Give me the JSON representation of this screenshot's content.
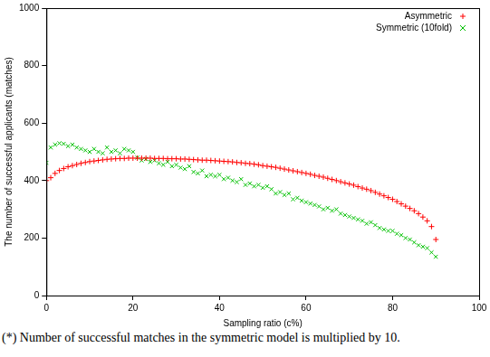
{
  "chart_data": {
    "type": "scatter",
    "x_label": "Sampling ratio (c%)",
    "y_label": "The number of successful applicants (matches)",
    "annotations": [
      "(*) Number of successful matches in the symmetric model is multiplied by 10."
    ],
    "x": [
      0,
      1,
      2,
      3,
      4,
      5,
      6,
      7,
      8,
      9,
      10,
      11,
      12,
      13,
      14,
      15,
      16,
      17,
      18,
      19,
      20,
      21,
      22,
      23,
      24,
      25,
      26,
      27,
      28,
      29,
      30,
      31,
      32,
      33,
      34,
      35,
      36,
      37,
      38,
      39,
      40,
      41,
      42,
      43,
      44,
      45,
      46,
      47,
      48,
      49,
      50,
      51,
      52,
      53,
      54,
      55,
      56,
      57,
      58,
      59,
      60,
      61,
      62,
      63,
      64,
      65,
      66,
      67,
      68,
      69,
      70,
      71,
      72,
      73,
      74,
      75,
      76,
      77,
      78,
      79,
      80,
      81,
      82,
      83,
      84,
      85,
      86,
      87,
      88,
      89,
      90
    ],
    "series": [
      {
        "name": "Asymmetric",
        "color": "#ff0000",
        "marker": "plus",
        "values": [
          400,
          410,
          425,
          435,
          442,
          448,
          452,
          456,
          460,
          463,
          466,
          468,
          470,
          472,
          474,
          475,
          476,
          477,
          477,
          478,
          478,
          478,
          478,
          478,
          478,
          477,
          477,
          477,
          476,
          476,
          476,
          475,
          475,
          474,
          473,
          472,
          471,
          471,
          470,
          469,
          468,
          467,
          466,
          465,
          463,
          462,
          460,
          459,
          457,
          455,
          452,
          450,
          448,
          446,
          443,
          440,
          437,
          434,
          431,
          428,
          425,
          422,
          418,
          415,
          412,
          408,
          404,
          400,
          396,
          392,
          388,
          384,
          379,
          374,
          370,
          365,
          359,
          353,
          347,
          341,
          335,
          327,
          319,
          311,
          303,
          295,
          285,
          273,
          260,
          240,
          195
        ]
      },
      {
        "name": "Symmetric (10fold)",
        "color": "#00c000",
        "marker": "x",
        "values": [
          462,
          515,
          525,
          530,
          528,
          520,
          525,
          515,
          510,
          505,
          500,
          510,
          500,
          495,
          515,
          500,
          505,
          495,
          510,
          505,
          500,
          480,
          470,
          475,
          465,
          470,
          460,
          455,
          465,
          450,
          455,
          445,
          440,
          450,
          430,
          425,
          435,
          415,
          420,
          415,
          420,
          405,
          410,
          400,
          395,
          405,
          385,
          390,
          380,
          385,
          375,
          380,
          370,
          355,
          360,
          350,
          355,
          335,
          340,
          330,
          325,
          320,
          315,
          310,
          300,
          305,
          295,
          300,
          285,
          280,
          275,
          270,
          265,
          260,
          250,
          255,
          245,
          235,
          230,
          225,
          225,
          215,
          210,
          200,
          195,
          185,
          175,
          170,
          165,
          150,
          135
        ]
      }
    ],
    "xlim": [
      0,
      100
    ],
    "xticks": [
      0,
      20,
      40,
      60,
      80,
      100
    ],
    "ylim": [
      0,
      1000
    ],
    "yticks": [
      0,
      200,
      400,
      600,
      800,
      1000
    ],
    "grid": false,
    "legend": "top-right"
  }
}
